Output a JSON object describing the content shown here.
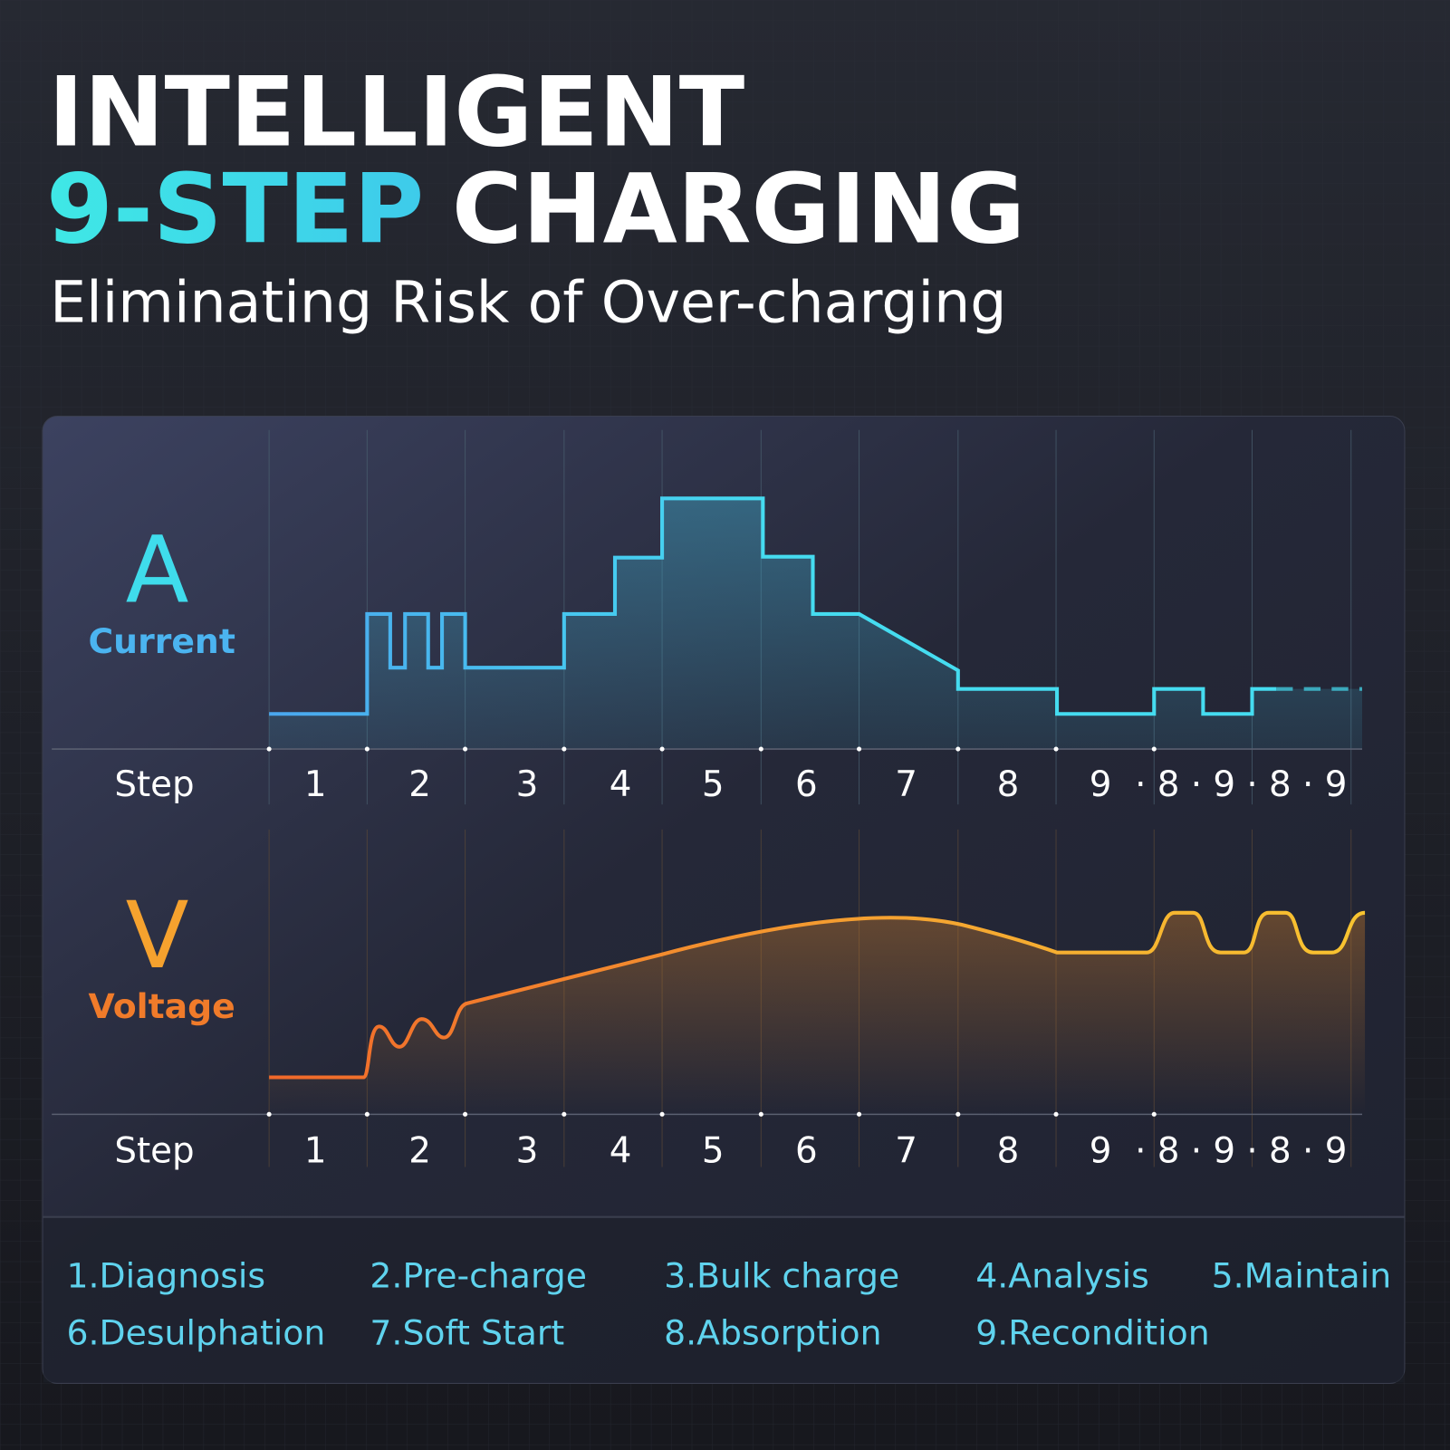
{
  "header": {
    "title_line1": "INTELLIGENT",
    "title_highlight": "9-STEP",
    "title_rest": "CHARGING",
    "subtitle": "Eliminating Risk of Over-charging"
  },
  "current_panel": {
    "symbol": "A",
    "label": "Current",
    "axis_label": "Step",
    "steps": [
      "1",
      "2",
      "3",
      "4",
      "5",
      "6",
      "7",
      "8",
      "9",
      "· 8 · 9 · 8 · 9"
    ]
  },
  "voltage_panel": {
    "symbol": "V",
    "label": "Voltage",
    "axis_label": "Step",
    "steps": [
      "1",
      "2",
      "3",
      "4",
      "5",
      "6",
      "7",
      "8",
      "9",
      "· 8 · 9 · 8 · 9"
    ]
  },
  "legend": [
    "1.Diagnosis",
    "2.Pre-charge",
    "3.Bulk charge",
    "4.Analysis",
    "5.Maintain",
    "6.Desulphation",
    "7.Soft Start",
    "8.Absorption",
    "9.Recondition"
  ]
}
